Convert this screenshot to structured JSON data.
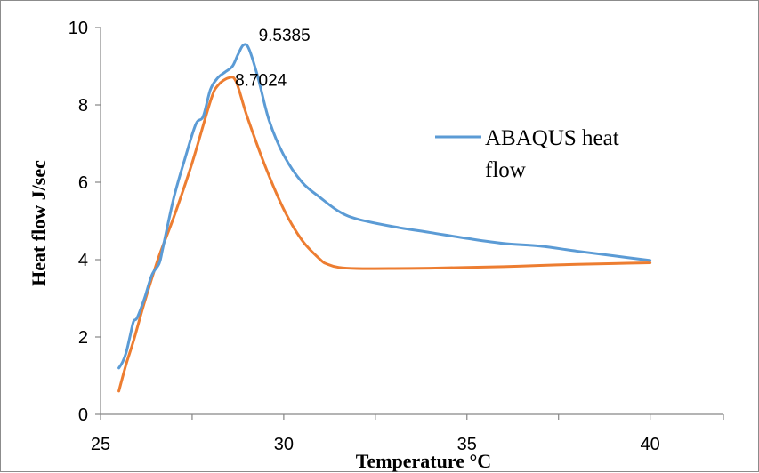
{
  "chart_data": {
    "type": "line",
    "title": "",
    "xlabel": "Temperature °C",
    "ylabel": "Heat flow J/sec",
    "xlim": [
      25,
      42
    ],
    "ylim": [
      0,
      10
    ],
    "x_ticks": [
      "25",
      "30",
      "35",
      "40"
    ],
    "y_ticks": [
      "0",
      "2",
      "4",
      "6",
      "8",
      "10"
    ],
    "grid": false,
    "legend_position": "right",
    "legend_entries": [
      "ABAQUS heat flow"
    ],
    "series": [
      {
        "name": "ABAQUS heat flow",
        "color": "#5B9BD5",
        "x": [
          25.5,
          25.6,
          25.7,
          25.8,
          25.9,
          26.0,
          26.2,
          26.4,
          26.6,
          26.7,
          27.0,
          27.3,
          27.6,
          27.8,
          28.0,
          28.2,
          28.4,
          28.6,
          28.75,
          28.9,
          29.05,
          29.3,
          29.6,
          30.0,
          30.5,
          31.0,
          31.5,
          32.0,
          33.0,
          34.0,
          35.0,
          36.0,
          37.0,
          38.0,
          39.0,
          40.0
        ],
        "y": [
          1.2,
          1.35,
          1.6,
          2.0,
          2.4,
          2.5,
          3.0,
          3.6,
          3.9,
          4.3,
          5.6,
          6.6,
          7.5,
          7.7,
          8.4,
          8.7,
          8.85,
          9.0,
          9.3,
          9.55,
          9.45,
          8.7,
          7.6,
          6.7,
          6.0,
          5.6,
          5.25,
          5.05,
          4.85,
          4.7,
          4.55,
          4.42,
          4.35,
          4.22,
          4.1,
          3.98
        ]
      },
      {
        "name": "",
        "color": "#ED7D31",
        "x": [
          25.5,
          25.7,
          25.9,
          26.2,
          26.6,
          27.0,
          27.5,
          28.0,
          28.2,
          28.5,
          28.7,
          29.0,
          29.5,
          30.0,
          30.5,
          31.0,
          31.2,
          31.5,
          32.0,
          33.0,
          34.0,
          35.0,
          36.0,
          37.0,
          38.0,
          39.0,
          40.0
        ],
        "y": [
          0.6,
          1.3,
          1.9,
          2.9,
          4.1,
          5.1,
          6.5,
          8.1,
          8.5,
          8.7,
          8.6,
          7.7,
          6.4,
          5.3,
          4.5,
          4.0,
          3.88,
          3.8,
          3.77,
          3.77,
          3.78,
          3.8,
          3.82,
          3.85,
          3.88,
          3.9,
          3.92
        ]
      }
    ],
    "annotations": [
      {
        "text": "9.5385",
        "x": 28.9,
        "y": 9.5385
      },
      {
        "text": "8.7024",
        "x": 28.5,
        "y": 8.7024
      }
    ]
  }
}
